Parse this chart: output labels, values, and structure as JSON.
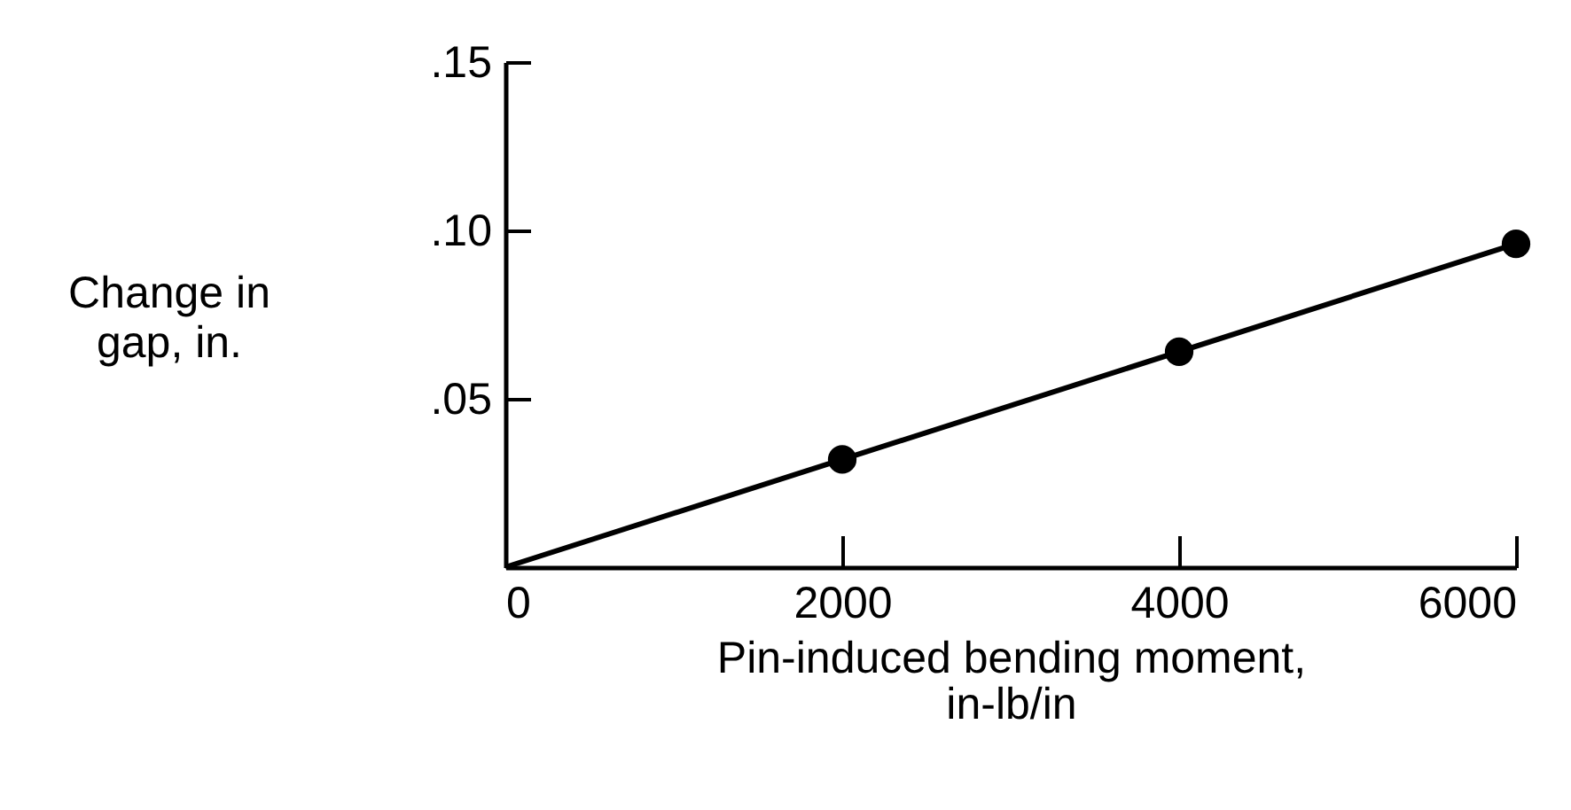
{
  "chart_data": {
    "type": "scatter",
    "xlabel": "Pin-induced bending moment, in-lb/in",
    "ylabel": "Change in gap, in.",
    "xlim": [
      0,
      6000
    ],
    "xticks": [
      0,
      2000,
      4000,
      6000
    ],
    "ylim": [
      0,
      0.15
    ],
    "yticks": [
      {
        "value": 0.05,
        "label": ".05"
      },
      {
        "value": 0.1,
        "label": ".10"
      },
      {
        "value": 0.15,
        "label": ".15"
      }
    ],
    "series": [
      {
        "type": "line",
        "color": "#000000",
        "x": [
          0,
          6000
        ],
        "values": [
          0,
          0.096
        ]
      },
      {
        "color": "#000000",
        "marker": "circle",
        "x": [
          2000,
          4000,
          6000
        ],
        "values": [
          0.032,
          0.064,
          0.096
        ]
      }
    ]
  }
}
